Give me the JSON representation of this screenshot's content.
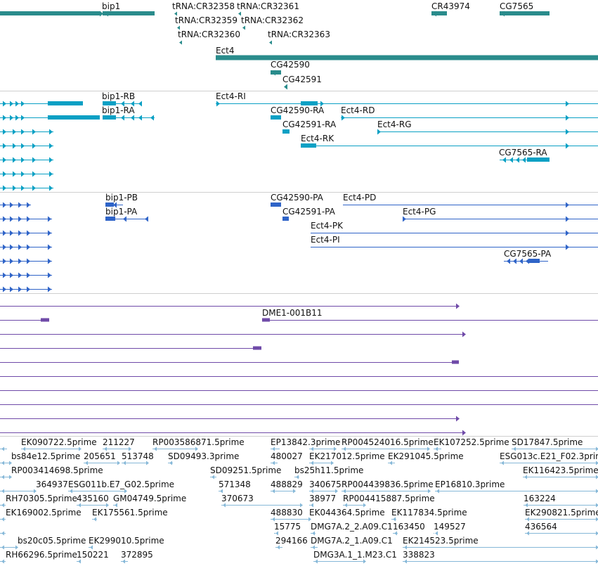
{
  "colors": {
    "gene": "#2a8c8c",
    "transcript": "#0aa0c4",
    "protein": "#2f64c8",
    "clone": "#6f4aa8",
    "est": "#86b8d8"
  },
  "tracks": [
    {
      "name": "genes",
      "labels": [
        {
          "text": "bip1"
        },
        {
          "text": "tRNA:CR32358"
        },
        {
          "text": "tRNA:CR32361"
        },
        {
          "text": "CR43974"
        },
        {
          "text": "CG7565"
        },
        {
          "text": "tRNA:CR32359"
        },
        {
          "text": "tRNA:CR32362"
        },
        {
          "text": "tRNA:CR32360"
        },
        {
          "text": "tRNA:CR32363"
        },
        {
          "text": "Ect4"
        },
        {
          "text": "CG42590"
        },
        {
          "text": "CG42591"
        }
      ]
    },
    {
      "name": "transcripts",
      "labels": [
        {
          "text": "bip1-RB"
        },
        {
          "text": "Ect4-RI"
        },
        {
          "text": "bip1-RA"
        },
        {
          "text": "CG42590-RA"
        },
        {
          "text": "Ect4-RD"
        },
        {
          "text": "CG42591-RA"
        },
        {
          "text": "Ect4-RG"
        },
        {
          "text": "Ect4-RK"
        },
        {
          "text": "CG7565-RA"
        }
      ]
    },
    {
      "name": "proteins",
      "labels": [
        {
          "text": "bip1-PB"
        },
        {
          "text": "CG42590-PA"
        },
        {
          "text": "Ect4-PD"
        },
        {
          "text": "bip1-PA"
        },
        {
          "text": "CG42591-PA"
        },
        {
          "text": "Ect4-PG"
        },
        {
          "text": "Ect4-PK"
        },
        {
          "text": "Ect4-PI"
        },
        {
          "text": "CG7565-PA"
        }
      ]
    },
    {
      "name": "clones",
      "labels": [
        {
          "text": "DME1-001B11"
        }
      ]
    },
    {
      "name": "est",
      "labels": [
        {
          "text": "EK090722.5prime"
        },
        {
          "text": "211227"
        },
        {
          "text": "RP003586871.5prime"
        },
        {
          "text": "EP13842.3prime"
        },
        {
          "text": "RP004524016.5prime"
        },
        {
          "text": "EK107252.5prime"
        },
        {
          "text": "SD17847.5prime"
        },
        {
          "text": "bs84e12.5prime"
        },
        {
          "text": "205651"
        },
        {
          "text": "513748"
        },
        {
          "text": "SD09493.3prime"
        },
        {
          "text": "480027"
        },
        {
          "text": "EK217012.5prime"
        },
        {
          "text": "EK291045.5prime"
        },
        {
          "text": "ESG013c.E21_F02.3prime"
        },
        {
          "text": "RP003414698.5prime"
        },
        {
          "text": "SD09251.5prime"
        },
        {
          "text": "bs25h11.5prime"
        },
        {
          "text": "EK116423.5prime"
        },
        {
          "text": "364937"
        },
        {
          "text": "ESG011b.E7_G02.5prime"
        },
        {
          "text": "571348"
        },
        {
          "text": "488829"
        },
        {
          "text": "340675"
        },
        {
          "text": "RP004439836.5prime"
        },
        {
          "text": "EP16810.3prime"
        },
        {
          "text": "RH70305.5prime"
        },
        {
          "text": "435160"
        },
        {
          "text": "GM04749.5prime"
        },
        {
          "text": "370673"
        },
        {
          "text": "38977"
        },
        {
          "text": "RP004415887.5prime"
        },
        {
          "text": "163224"
        },
        {
          "text": "EK169002.5prime"
        },
        {
          "text": "EK175561.5prime"
        },
        {
          "text": "488830"
        },
        {
          "text": "EK044364.5prime"
        },
        {
          "text": "EK117834.5prime"
        },
        {
          "text": "EK290821.5prime"
        },
        {
          "text": "15775"
        },
        {
          "text": "DMG7A.2_2.A09.C1"
        },
        {
          "text": "163450"
        },
        {
          "text": "149527"
        },
        {
          "text": "436564"
        },
        {
          "text": "bs20c05.5prime"
        },
        {
          "text": "EK299010.5prime"
        },
        {
          "text": "294166"
        },
        {
          "text": "DMG7A.2_1.A09.C1"
        },
        {
          "text": "EK214523.5prime"
        },
        {
          "text": "RH66296.5prime"
        },
        {
          "text": "150221"
        },
        {
          "text": "372895"
        },
        {
          "text": "DMG3A.1_1.M23.C1"
        },
        {
          "text": "338823"
        }
      ]
    }
  ]
}
